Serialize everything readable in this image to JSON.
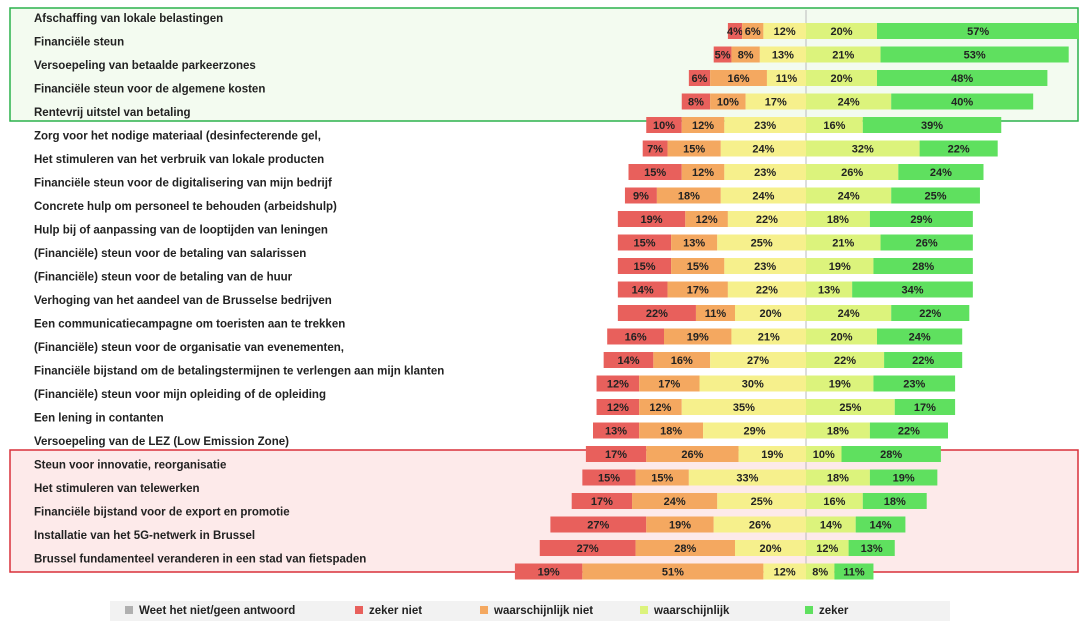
{
  "chart_data": {
    "type": "diverging-bar",
    "categories": [
      "Afschaffing  van lokale belastingen",
      "Financiële steun",
      "Versoepeling van betaalde parkeerzones",
      "Financiële steun voor de algemene kosten",
      "Rentevrij uitstel van betaling",
      "Zorg voor het nodige materiaal (desinfecterende gel,",
      "Het stimuleren van het verbruik van lokale producten",
      "Financiële steun voor de digitalisering van mijn bedrijf",
      "Concrete hulp om personeel te behouden (arbeidshulp)",
      "Hulp bij of aanpassing  van de looptijden van leningen",
      "(Financiële) steun voor de betaling van salarissen",
      "(Financiële) steun voor de betaling van de huur",
      "Verhoging van het aandeel van de Brusselse bedrijven",
      "Een communicatiecampagne  om toeristen aan te trekken",
      "(Financiële) steun voor de organisatie van evenementen,",
      "Financiële bijstand  om de betalingstermijnen  te verlengen aan mijn klanten",
      "(Financiële) steun voor mijn  opleiding of de opleiding",
      "Een lening in contanten",
      "Versoepeling van de LEZ (Low Emission Zone)",
      "Steun voor innovatie, reorganisatie",
      "Het stimuleren van telewerken",
      "Financiële bijstand  voor de export en promotie",
      "Installatie van het 5G-netwerk in Brussel",
      "Brussel fundamenteel  veranderen in een stad  van fietspaden"
    ],
    "series": [
      {
        "name": "zeker niet",
        "color": "#e8605c",
        "values": [
          4,
          5,
          6,
          8,
          10,
          7,
          15,
          9,
          19,
          15,
          15,
          14,
          22,
          16,
          14,
          12,
          12,
          13,
          17,
          15,
          17,
          27,
          27,
          19
        ],
        "value_labels": [
          "4%",
          "5%",
          "6%",
          "8%",
          "10%",
          "7%",
          "15%",
          "9%",
          "19%",
          "15%",
          "15%",
          "14%",
          "22%",
          "16%",
          "14%",
          "12%",
          "12%",
          "13%",
          "17%",
          "15%",
          "17%",
          "27%",
          "27%",
          "19%"
        ]
      },
      {
        "name": "waarschijnlijk  niet",
        "color": "#f4a860",
        "values": [
          6,
          8,
          16,
          10,
          12,
          15,
          12,
          18,
          12,
          13,
          15,
          17,
          11,
          19,
          16,
          17,
          12,
          18,
          26,
          15,
          24,
          19,
          28,
          51
        ],
        "value_labels": [
          "6%",
          "8%",
          "16%",
          "10%",
          "12%",
          "15%",
          "12%",
          "18%",
          "12%",
          "13%",
          "15%",
          "17%",
          "11%",
          "19%",
          "16%",
          "17%",
          "12%",
          "18%",
          "26%",
          "15%",
          "24%",
          "19%",
          "28%",
          "51%"
        ]
      },
      {
        "name": "Weet het niet/geen antwoord",
        "color": "#f6f08c",
        "values": [
          12,
          13,
          11,
          17,
          23,
          24,
          23,
          24,
          22,
          25,
          23,
          22,
          20,
          21,
          27,
          30,
          35,
          29,
          19,
          33,
          25,
          26,
          20,
          12
        ],
        "value_labels": [
          "12%",
          "13%",
          "11%",
          "17%",
          "23%",
          "24%",
          "23%",
          "24%",
          "22%",
          "25%",
          "23%",
          "22%",
          "20%",
          "21%",
          "27%",
          "30%",
          "35%",
          "29%",
          "19%",
          "33%",
          "25%",
          "26%",
          "20%",
          "12%"
        ]
      },
      {
        "name": "waarschijnlijk",
        "color": "#dcf37c",
        "values": [
          20,
          21,
          20,
          24,
          16,
          32,
          26,
          24,
          18,
          21,
          19,
          13,
          24,
          20,
          22,
          19,
          25,
          18,
          10,
          18,
          16,
          14,
          12,
          8
        ],
        "value_labels": [
          "20%",
          "21%",
          "20%",
          "24%",
          "16%",
          "32%",
          "26%",
          "24%",
          "18%",
          "21%",
          "19%",
          "13%",
          "24%",
          "20%",
          "22%",
          "19%",
          "25%",
          "18%",
          "10%",
          "18%",
          "16%",
          "14%",
          "12%",
          "8%"
        ]
      },
      {
        "name": "zeker",
        "color": "#5fe05f",
        "values": [
          57,
          53,
          48,
          40,
          39,
          22,
          24,
          25,
          29,
          26,
          28,
          34,
          22,
          24,
          22,
          23,
          17,
          22,
          28,
          19,
          18,
          14,
          13,
          11
        ],
        "value_labels": [
          "57%",
          "53%",
          "48%",
          "40%",
          "39%",
          "22%",
          "24%",
          "25%",
          "29%",
          "26%",
          "28%",
          "34%",
          "22%",
          "24%",
          "22%",
          "23%",
          "17%",
          "22%",
          "28%",
          "19%",
          "18%",
          "14%",
          "13%",
          "11%"
        ]
      }
    ],
    "legend_order": [
      2,
      0,
      1,
      3,
      4
    ]
  }
}
